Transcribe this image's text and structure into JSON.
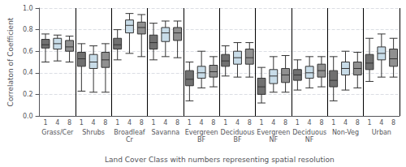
{
  "chart_data": {
    "type": "boxplot",
    "xlabel": "Land Cover Class with numbers representing spatial resolution",
    "ylabel": "Correlaton of Coefficient",
    "categories": [
      "Grass/Cer",
      "Shrubs",
      "Broadleaf\nCr",
      "Savanna",
      "Evergreen\nBF",
      "Deciduous\nBF",
      "Evergreen\nNF",
      "Deciduous\nNF",
      "Non-Veg",
      "Urban"
    ],
    "ylim": [
      0,
      1.0
    ],
    "yticks": [
      {
        "value": 0,
        "label": "0.0"
      },
      0.2,
      0.4,
      0.6,
      0.8,
      {
        "value": 1.0,
        "label": "1.0"
      }
    ],
    "grid": true,
    "series": [
      {
        "name": "1",
        "color": "#707070",
        "values": [
          {
            "whislo": 0.5,
            "q1": 0.63,
            "med": 0.66,
            "q3": 0.71,
            "whishi": 0.76
          },
          {
            "whislo": 0.23,
            "q1": 0.46,
            "med": 0.53,
            "q3": 0.59,
            "whishi": 0.67
          },
          {
            "whislo": 0.52,
            "q1": 0.62,
            "med": 0.66,
            "q3": 0.72,
            "whishi": 0.8
          },
          {
            "whislo": 0.52,
            "q1": 0.62,
            "med": 0.68,
            "q3": 0.75,
            "whishi": 0.86
          },
          {
            "whislo": 0.14,
            "q1": 0.28,
            "med": 0.34,
            "q3": 0.42,
            "whishi": 0.5
          },
          {
            "whislo": 0.37,
            "q1": 0.46,
            "med": 0.51,
            "q3": 0.57,
            "whishi": 0.65
          },
          {
            "whislo": 0.12,
            "q1": 0.2,
            "med": 0.27,
            "q3": 0.35,
            "whishi": 0.45
          },
          {
            "whislo": 0.24,
            "q1": 0.33,
            "med": 0.38,
            "q3": 0.43,
            "whishi": 0.52
          },
          {
            "whislo": 0.14,
            "q1": 0.27,
            "med": 0.33,
            "q3": 0.42,
            "whishi": 0.55
          },
          {
            "whislo": 0.32,
            "q1": 0.43,
            "med": 0.49,
            "q3": 0.57,
            "whishi": 0.72
          }
        ]
      },
      {
        "name": "4",
        "color": "#c8dce8",
        "values": [
          {
            "whislo": 0.51,
            "q1": 0.62,
            "med": 0.67,
            "q3": 0.72,
            "whishi": 0.75
          },
          {
            "whislo": 0.22,
            "q1": 0.44,
            "med": 0.5,
            "q3": 0.57,
            "whishi": 0.65
          },
          {
            "whislo": 0.58,
            "q1": 0.77,
            "med": 0.84,
            "q3": 0.89,
            "whishi": 0.95
          },
          {
            "whislo": 0.55,
            "q1": 0.69,
            "med": 0.77,
            "q3": 0.82,
            "whishi": 0.88
          },
          {
            "whislo": 0.26,
            "q1": 0.35,
            "med": 0.4,
            "q3": 0.46,
            "whishi": 0.6
          },
          {
            "whislo": 0.36,
            "q1": 0.48,
            "med": 0.54,
            "q3": 0.6,
            "whishi": 0.68
          },
          {
            "whislo": 0.22,
            "q1": 0.3,
            "med": 0.37,
            "q3": 0.43,
            "whishi": 0.55
          },
          {
            "whislo": 0.26,
            "q1": 0.35,
            "med": 0.4,
            "q3": 0.46,
            "whishi": 0.55
          },
          {
            "whislo": 0.24,
            "q1": 0.38,
            "med": 0.44,
            "q3": 0.5,
            "whishi": 0.6
          },
          {
            "whislo": 0.36,
            "q1": 0.52,
            "med": 0.58,
            "q3": 0.64,
            "whishi": 0.76
          }
        ]
      },
      {
        "name": "8",
        "color": "#909090",
        "values": [
          {
            "whislo": 0.5,
            "q1": 0.6,
            "med": 0.64,
            "q3": 0.7,
            "whishi": 0.74
          },
          {
            "whislo": 0.22,
            "q1": 0.45,
            "med": 0.52,
            "q3": 0.59,
            "whishi": 0.67
          },
          {
            "whislo": 0.55,
            "q1": 0.76,
            "med": 0.82,
            "q3": 0.87,
            "whishi": 0.94
          },
          {
            "whislo": 0.54,
            "q1": 0.7,
            "med": 0.77,
            "q3": 0.82,
            "whishi": 0.88
          },
          {
            "whislo": 0.27,
            "q1": 0.36,
            "med": 0.41,
            "q3": 0.47,
            "whishi": 0.55
          },
          {
            "whislo": 0.36,
            "q1": 0.48,
            "med": 0.54,
            "q3": 0.62,
            "whishi": 0.68
          },
          {
            "whislo": 0.22,
            "q1": 0.31,
            "med": 0.38,
            "q3": 0.44,
            "whishi": 0.56
          },
          {
            "whislo": 0.27,
            "q1": 0.36,
            "med": 0.42,
            "q3": 0.48,
            "whishi": 0.55
          },
          {
            "whislo": 0.26,
            "q1": 0.38,
            "med": 0.44,
            "q3": 0.5,
            "whishi": 0.59
          },
          {
            "whislo": 0.36,
            "q1": 0.46,
            "med": 0.53,
            "q3": 0.62,
            "whishi": 0.72
          }
        ]
      }
    ]
  }
}
